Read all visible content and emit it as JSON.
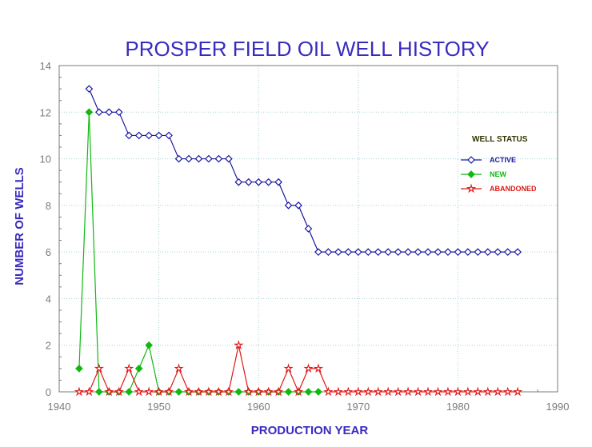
{
  "chart_data": {
    "type": "line",
    "title": "PROSPER FIELD OIL WELL HISTORY",
    "xlabel": "PRODUCTION YEAR",
    "ylabel": "NUMBER OF WELLS",
    "xlim": [
      1940,
      1990
    ],
    "ylim": [
      0,
      14
    ],
    "xticks": [
      1940,
      1950,
      1960,
      1970,
      1980,
      1990
    ],
    "yticks": [
      0,
      2,
      4,
      6,
      8,
      10,
      12,
      14
    ],
    "grid": true,
    "legend": {
      "title": "WELL STATUS",
      "position": "right"
    },
    "series": [
      {
        "name": "ACTIVE",
        "color": "#1a1aa0",
        "marker": "diamond-open",
        "x": [
          1943,
          1944,
          1945,
          1946,
          1947,
          1948,
          1949,
          1950,
          1951,
          1952,
          1953,
          1954,
          1955,
          1956,
          1957,
          1958,
          1959,
          1960,
          1961,
          1962,
          1963,
          1964,
          1965,
          1966,
          1967,
          1968,
          1969,
          1970,
          1971,
          1972,
          1973,
          1974,
          1975,
          1976,
          1977,
          1978,
          1979,
          1980,
          1981,
          1982,
          1983,
          1984,
          1985,
          1986
        ],
        "y": [
          13,
          12,
          12,
          12,
          11,
          11,
          11,
          11,
          11,
          10,
          10,
          10,
          10,
          10,
          10,
          9,
          9,
          9,
          9,
          9,
          8,
          8,
          7,
          6,
          6,
          6,
          6,
          6,
          6,
          6,
          6,
          6,
          6,
          6,
          6,
          6,
          6,
          6,
          6,
          6,
          6,
          6,
          6,
          6
        ]
      },
      {
        "name": "NEW",
        "color": "#12b812",
        "marker": "diamond-filled",
        "x": [
          1942,
          1943,
          1944,
          1945,
          1946,
          1947,
          1948,
          1949,
          1950,
          1951,
          1952,
          1953,
          1954,
          1955,
          1956,
          1957,
          1958,
          1959,
          1960,
          1961,
          1962,
          1963,
          1964,
          1965,
          1966
        ],
        "y": [
          1,
          12,
          0,
          0,
          0,
          0,
          1,
          2,
          0,
          0,
          0,
          0,
          0,
          0,
          0,
          0,
          0,
          0,
          0,
          0,
          0,
          0,
          0,
          0,
          0
        ]
      },
      {
        "name": "ABANDONED",
        "color": "#e01818",
        "marker": "star-open",
        "x": [
          1942,
          1943,
          1944,
          1945,
          1946,
          1947,
          1948,
          1949,
          1950,
          1951,
          1952,
          1953,
          1954,
          1955,
          1956,
          1957,
          1958,
          1959,
          1960,
          1961,
          1962,
          1963,
          1964,
          1965,
          1966,
          1967,
          1968,
          1969,
          1970,
          1971,
          1972,
          1973,
          1974,
          1975,
          1976,
          1977,
          1978,
          1979,
          1980,
          1981,
          1982,
          1983,
          1984,
          1985,
          1986
        ],
        "y": [
          0,
          0,
          1,
          0,
          0,
          1,
          0,
          0,
          0,
          0,
          1,
          0,
          0,
          0,
          0,
          0,
          2,
          0,
          0,
          0,
          0,
          1,
          0,
          1,
          1,
          0,
          0,
          0,
          0,
          0,
          0,
          0,
          0,
          0,
          0,
          0,
          0,
          0,
          0,
          0,
          0,
          0,
          0,
          0,
          0
        ]
      }
    ]
  }
}
